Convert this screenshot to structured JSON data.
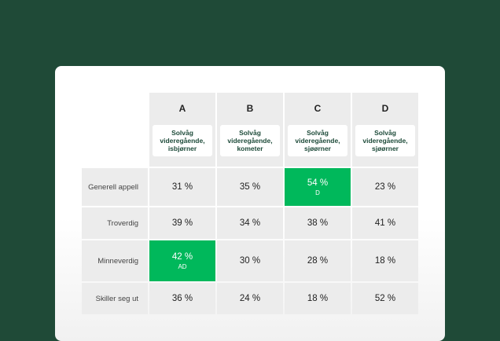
{
  "columns": [
    {
      "letter": "A",
      "school": "Solvåg videregående, isbjørner"
    },
    {
      "letter": "B",
      "school": "Solvåg videregående, kometer"
    },
    {
      "letter": "C",
      "school": "Solvåg videregående, sjøørner"
    },
    {
      "letter": "D",
      "school": "Solvåg videregående, sjøørner"
    }
  ],
  "rows": [
    {
      "label": "Generell appell",
      "cells": [
        {
          "value": "31 %",
          "sub": ""
        },
        {
          "value": "35 %",
          "sub": ""
        },
        {
          "value": "54 %",
          "sub": "D"
        },
        {
          "value": "23 %",
          "sub": ""
        }
      ]
    },
    {
      "label": "Troverdig",
      "cells": [
        {
          "value": "39 %",
          "sub": ""
        },
        {
          "value": "34 %",
          "sub": ""
        },
        {
          "value": "38 %",
          "sub": ""
        },
        {
          "value": "41 %",
          "sub": ""
        }
      ]
    },
    {
      "label": "Minneverdig",
      "cells": [
        {
          "value": "42 %",
          "sub": "AD"
        },
        {
          "value": "30 %",
          "sub": ""
        },
        {
          "value": "28 %",
          "sub": ""
        },
        {
          "value": "18 %",
          "sub": ""
        }
      ]
    },
    {
      "label": "Skiller seg ut",
      "cells": [
        {
          "value": "36 %",
          "sub": ""
        },
        {
          "value": "24 %",
          "sub": ""
        },
        {
          "value": "18 %",
          "sub": ""
        },
        {
          "value": "52 %",
          "sub": ""
        }
      ]
    }
  ],
  "colors": {
    "background": "#1f4a37",
    "highlight": "#00b85b",
    "cell": "#ececec"
  }
}
